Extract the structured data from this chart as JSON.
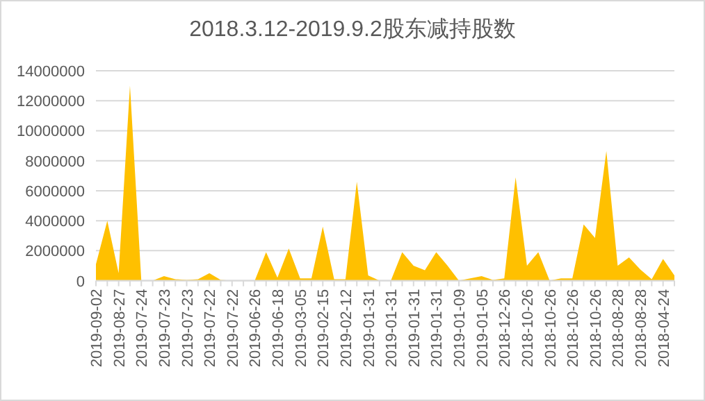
{
  "chart_data": {
    "type": "area",
    "title": "2018.3.12-2019.9.2股东减持股数",
    "categories": [
      "2019-09-02",
      null,
      "2019-08-27",
      null,
      "2019-07-24",
      null,
      "2019-07-23",
      null,
      "2019-07-23",
      null,
      "2019-07-22",
      null,
      "2019-07-22",
      null,
      "2019-06-26",
      null,
      "2019-06-18",
      null,
      "2019-03-05",
      null,
      "2019-02-15",
      null,
      "2019-02-12",
      null,
      "2019-01-31",
      null,
      "2019-01-31",
      null,
      "2019-01-31",
      null,
      "2019-01-31",
      null,
      "2019-01-09",
      null,
      "2019-01-05",
      null,
      "2018-12-26",
      null,
      "2018-10-26",
      null,
      "2018-10-26",
      null,
      "2018-10-26",
      null,
      "2018-10-26",
      null,
      "2018-08-28",
      null,
      "2018-08-28",
      null,
      "2018-04-24",
      null
    ],
    "values": [
      1100000,
      4000000,
      500000,
      13000000,
      0,
      0,
      300000,
      100000,
      50000,
      100000,
      500000,
      50000,
      0,
      0,
      0,
      1900000,
      200000,
      2150000,
      150000,
      150000,
      3600000,
      100000,
      100000,
      6600000,
      350000,
      0,
      0,
      1900000,
      1000000,
      700000,
      1900000,
      1000000,
      0,
      150000,
      300000,
      50000,
      150000,
      6900000,
      1000000,
      1900000,
      0,
      150000,
      150000,
      3750000,
      2850000,
      8650000,
      1000000,
      1550000,
      750000,
      100000,
      1450000,
      350000
    ],
    "color": "#ffc000",
    "ylim": [
      0,
      14000000
    ],
    "yticks": [
      0,
      2000000,
      4000000,
      6000000,
      8000000,
      10000000,
      12000000,
      14000000
    ],
    "grid": "y"
  }
}
